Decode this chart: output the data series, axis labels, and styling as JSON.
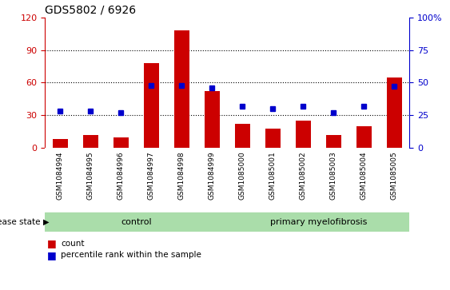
{
  "title": "GDS5802 / 6926",
  "samples": [
    "GSM1084994",
    "GSM1084995",
    "GSM1084996",
    "GSM1084997",
    "GSM1084998",
    "GSM1084999",
    "GSM1085000",
    "GSM1085001",
    "GSM1085002",
    "GSM1085003",
    "GSM1085004",
    "GSM1085005"
  ],
  "counts": [
    8,
    12,
    10,
    78,
    108,
    52,
    22,
    18,
    25,
    12,
    20,
    65
  ],
  "percentiles": [
    28,
    28,
    27,
    48,
    48,
    46,
    32,
    30,
    32,
    27,
    32,
    47
  ],
  "ctrl_indices": [
    0,
    1,
    2,
    3,
    4,
    5
  ],
  "pmf_indices": [
    6,
    7,
    8,
    9,
    10,
    11
  ],
  "bar_color": "#cc0000",
  "dot_color": "#0000cc",
  "ylim_left": [
    0,
    120
  ],
  "ylim_right": [
    0,
    100
  ],
  "yticks_left": [
    0,
    30,
    60,
    90,
    120
  ],
  "yticks_right": [
    0,
    25,
    50,
    75,
    100
  ],
  "label_color_left": "#cc0000",
  "label_color_right": "#0000cc",
  "group_bg_color": "#aaddaa",
  "xtick_bg_color": "#cccccc",
  "disease_state_label": "disease state",
  "group_labels": [
    "control",
    "primary myelofibrosis"
  ],
  "legend_count": "count",
  "legend_percentile": "percentile rank within the sample",
  "title_fontsize": 10,
  "tick_fontsize": 8,
  "xtick_fontsize": 6.5,
  "group_fontsize": 8,
  "legend_fontsize": 7.5
}
